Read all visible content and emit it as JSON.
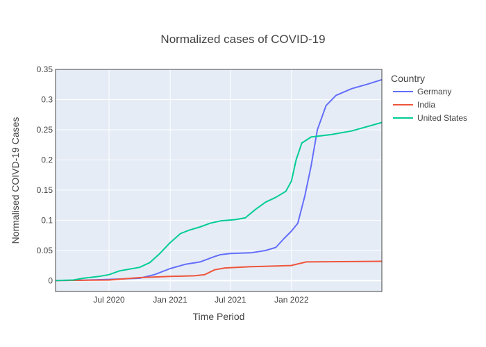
{
  "chart_data": {
    "type": "line",
    "title": "Normalized cases of COVID-19",
    "xlabel": "Time Period",
    "ylabel": "Normalised COIVD-19 Cases",
    "x_ticks": [
      "Jul 2020",
      "Jan 2021",
      "Jul 2021",
      "Jan 2022"
    ],
    "x_tick_dates": [
      "2020-07-01",
      "2021-01-01",
      "2021-07-01",
      "2022-01-01"
    ],
    "xlim": [
      "2020-01-22",
      "2022-09-30"
    ],
    "y_ticks": [
      "0",
      "0.05",
      "0.1",
      "0.15",
      "0.2",
      "0.25",
      "0.3",
      "0.35"
    ],
    "y_tick_values": [
      0,
      0.05,
      0.1,
      0.15,
      0.2,
      0.25,
      0.3,
      0.35
    ],
    "ylim": [
      -0.018,
      0.35
    ],
    "grid": true,
    "legend": {
      "title": "Country",
      "position": "right"
    },
    "series": [
      {
        "name": "Germany",
        "color": "#636efa",
        "points": [
          [
            "2020-01-22",
            0
          ],
          [
            "2020-04-01",
            0.0005
          ],
          [
            "2020-07-01",
            0.002
          ],
          [
            "2020-10-01",
            0.004
          ],
          [
            "2020-11-15",
            0.01
          ],
          [
            "2021-01-01",
            0.02
          ],
          [
            "2021-02-15",
            0.027
          ],
          [
            "2021-04-01",
            0.031
          ],
          [
            "2021-05-15",
            0.04
          ],
          [
            "2021-06-01",
            0.043
          ],
          [
            "2021-07-01",
            0.045
          ],
          [
            "2021-09-01",
            0.046
          ],
          [
            "2021-10-15",
            0.05
          ],
          [
            "2021-11-15",
            0.055
          ],
          [
            "2021-12-10",
            0.07
          ],
          [
            "2022-01-01",
            0.082
          ],
          [
            "2022-01-20",
            0.095
          ],
          [
            "2022-02-10",
            0.14
          ],
          [
            "2022-03-01",
            0.19
          ],
          [
            "2022-03-20",
            0.25
          ],
          [
            "2022-04-15",
            0.29
          ],
          [
            "2022-05-15",
            0.307
          ],
          [
            "2022-07-01",
            0.318
          ],
          [
            "2022-08-15",
            0.325
          ],
          [
            "2022-09-30",
            0.333
          ]
        ]
      },
      {
        "name": "India",
        "color": "#ef553b",
        "points": [
          [
            "2020-01-22",
            0
          ],
          [
            "2020-07-01",
            0.001
          ],
          [
            "2020-10-01",
            0.005
          ],
          [
            "2021-01-01",
            0.007
          ],
          [
            "2021-03-15",
            0.008
          ],
          [
            "2021-04-15",
            0.01
          ],
          [
            "2021-05-15",
            0.018
          ],
          [
            "2021-06-15",
            0.021
          ],
          [
            "2021-09-01",
            0.023
          ],
          [
            "2021-12-31",
            0.025
          ],
          [
            "2022-01-15",
            0.027
          ],
          [
            "2022-02-15",
            0.031
          ],
          [
            "2022-09-30",
            0.032
          ]
        ]
      },
      {
        "name": "United States",
        "color": "#00cc96",
        "points": [
          [
            "2020-01-22",
            0
          ],
          [
            "2020-03-15",
            0.001
          ],
          [
            "2020-04-15",
            0.004
          ],
          [
            "2020-06-01",
            0.007
          ],
          [
            "2020-07-01",
            0.01
          ],
          [
            "2020-08-01",
            0.016
          ],
          [
            "2020-10-01",
            0.022
          ],
          [
            "2020-11-01",
            0.03
          ],
          [
            "2020-12-01",
            0.045
          ],
          [
            "2021-01-01",
            0.063
          ],
          [
            "2021-02-01",
            0.078
          ],
          [
            "2021-03-01",
            0.084
          ],
          [
            "2021-04-01",
            0.089
          ],
          [
            "2021-05-01",
            0.095
          ],
          [
            "2021-06-01",
            0.099
          ],
          [
            "2021-07-15",
            0.101
          ],
          [
            "2021-08-15",
            0.104
          ],
          [
            "2021-09-15",
            0.118
          ],
          [
            "2021-10-15",
            0.13
          ],
          [
            "2021-11-15",
            0.138
          ],
          [
            "2021-12-15",
            0.148
          ],
          [
            "2022-01-01",
            0.165
          ],
          [
            "2022-01-15",
            0.2
          ],
          [
            "2022-02-01",
            0.228
          ],
          [
            "2022-03-01",
            0.238
          ],
          [
            "2022-05-01",
            0.242
          ],
          [
            "2022-07-01",
            0.248
          ],
          [
            "2022-09-30",
            0.262
          ]
        ]
      }
    ]
  }
}
